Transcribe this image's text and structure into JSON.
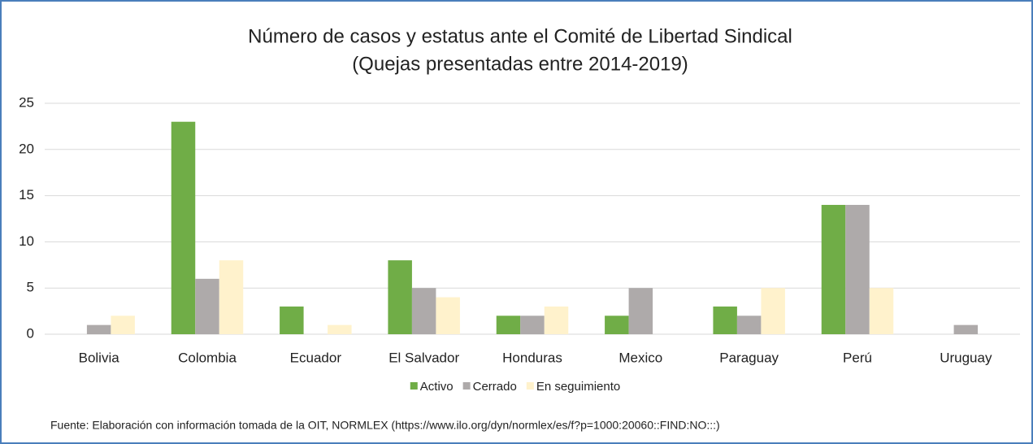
{
  "chart_data": {
    "type": "bar",
    "title": [
      "Número de casos y estatus ante el Comité de Libertad Sindical",
      "(Quejas presentadas entre 2014-2019)"
    ],
    "categories": [
      "Bolivia",
      "Colombia",
      "Ecuador",
      "El Salvador",
      "Honduras",
      "Mexico",
      "Paraguay",
      "Perú",
      "Uruguay"
    ],
    "series": [
      {
        "name": "Activo",
        "color": "#70ad47",
        "values": [
          0,
          23,
          3,
          8,
          2,
          2,
          3,
          14,
          0
        ]
      },
      {
        "name": "Cerrado",
        "color": "#aeaaaa",
        "values": [
          1,
          6,
          0,
          5,
          2,
          5,
          2,
          14,
          1
        ]
      },
      {
        "name": "En seguimiento",
        "color": "#fff2cc",
        "values": [
          2,
          8,
          1,
          4,
          3,
          0,
          5,
          5,
          0
        ]
      }
    ],
    "ylim": [
      0,
      25
    ],
    "yticks": [
      0,
      5,
      10,
      15,
      20,
      25
    ],
    "grid": true,
    "legend": "bottom",
    "source": "Fuente: Elaboración con información tomada de la OIT, NORMLEX (https://www.ilo.org/dyn/normlex/es/f?p=1000:20060::FIND:NO:::)"
  }
}
